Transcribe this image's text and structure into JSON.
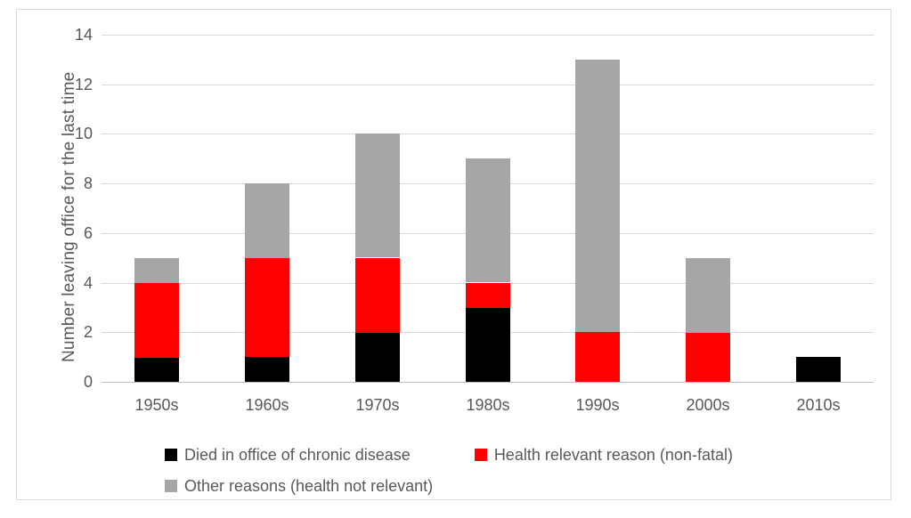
{
  "chart_data": {
    "type": "bar",
    "stacked": true,
    "title": "",
    "xlabel": "",
    "ylabel": "Number leaving office for the last time",
    "ylim": [
      0,
      14
    ],
    "ytick_step": 2,
    "grid": true,
    "legend_position": "bottom-left",
    "categories": [
      "1950s",
      "1960s",
      "1970s",
      "1980s",
      "1990s",
      "2000s",
      "2010s"
    ],
    "series": [
      {
        "name": "Died in office of chronic disease",
        "color": "#000000",
        "values": [
          1,
          1,
          2,
          3,
          0,
          0,
          1
        ]
      },
      {
        "name": "Health relevant reason (non-fatal)",
        "color": "#ff0000",
        "values": [
          3,
          4,
          3,
          1,
          2,
          2,
          0
        ]
      },
      {
        "name": "Other reasons (health not relevant)",
        "color": "#a6a6a6",
        "values": [
          1,
          3,
          5,
          5,
          11,
          3,
          0
        ]
      }
    ],
    "totals": [
      5,
      8,
      10,
      9,
      13,
      5,
      1
    ]
  },
  "colors": {
    "background": "#ffffff",
    "frame_border": "#d9d9d9",
    "gridline": "#d9d9d9",
    "axis_line": "#bfbfbf",
    "text": "#595959"
  }
}
